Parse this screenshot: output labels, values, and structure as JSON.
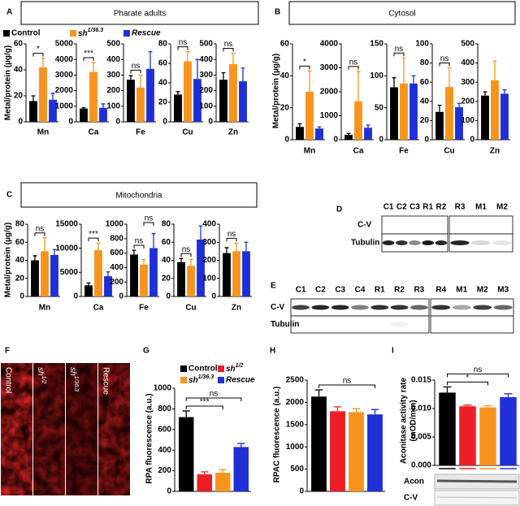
{
  "panels": [
    {
      "letter": "A",
      "title": "Pharate adults"
    },
    {
      "letter": "B",
      "title": "Cytosol"
    },
    {
      "letter": "C",
      "title": "Mitochondria"
    },
    {
      "letter": "D"
    },
    {
      "letter": "E"
    },
    {
      "letter": "F"
    },
    {
      "letter": "G"
    },
    {
      "letter": "H"
    },
    {
      "letter": "I"
    }
  ],
  "chart_data": [
    {
      "type": "bar",
      "xlabel": "Mn",
      "ylabel": "Metal/protein (µg/g)",
      "legend": [
        {
          "name": "Control",
          "color": "#000000"
        },
        {
          "name": "sh1/36.3",
          "color": "#f7941d"
        },
        {
          "name": "Rescue",
          "color": "#1f2fd8"
        }
      ],
      "values": [
        16,
        42,
        17
      ],
      "errors": [
        4,
        7,
        5
      ],
      "colors": [
        "#000000",
        "#f7941d",
        "#1f2fd8"
      ],
      "ylim": [
        0,
        60
      ],
      "yticks": [
        0,
        20,
        40,
        60
      ],
      "significance": [
        {
          "label": "*",
          "spans": [
            0,
            1
          ]
        }
      ]
    },
    {
      "type": "bar",
      "xlabel": "Ca",
      "values": [
        850,
        3200,
        900
      ],
      "errors": [
        60,
        600,
        250
      ],
      "colors": [
        "#000000",
        "#f7941d",
        "#1f2fd8"
      ],
      "ylim": [
        0,
        5000
      ],
      "yticks": [
        0,
        1000,
        2000,
        3000,
        4000,
        5000
      ],
      "significance": [
        {
          "label": "***",
          "spans": [
            0,
            1
          ]
        }
      ]
    },
    {
      "type": "bar",
      "xlabel": "Fe",
      "values": [
        270,
        220,
        340
      ],
      "errors": [
        25,
        80,
        110
      ],
      "colors": [
        "#000000",
        "#f7941d",
        "#1f2fd8"
      ],
      "ylim": [
        0,
        500
      ],
      "yticks": [
        0,
        100,
        200,
        300,
        400,
        500
      ],
      "significance": [
        {
          "label": "ns",
          "spans": [
            0,
            1
          ]
        }
      ]
    },
    {
      "type": "bar",
      "xlabel": "Cu",
      "values": [
        28,
        62,
        44
      ],
      "errors": [
        3,
        10,
        20
      ],
      "colors": [
        "#000000",
        "#f7941d",
        "#1f2fd8"
      ],
      "ylim": [
        0,
        80
      ],
      "yticks": [
        0,
        20,
        40,
        60,
        80
      ],
      "significance": [
        {
          "label": "ns",
          "spans": [
            0,
            1
          ]
        }
      ]
    },
    {
      "type": "bar",
      "xlabel": "Zn",
      "values": [
        270,
        370,
        260
      ],
      "errors": [
        45,
        70,
        85
      ],
      "colors": [
        "#000000",
        "#f7941d",
        "#1f2fd8"
      ],
      "ylim": [
        0,
        500
      ],
      "yticks": [
        0,
        100,
        200,
        300,
        400,
        500
      ],
      "significance": [
        {
          "label": "ns",
          "spans": [
            0,
            1
          ]
        }
      ]
    },
    {
      "type": "bar",
      "xlabel": "Mn",
      "ylabel": "Metal/protein (µg/g)",
      "values": [
        8,
        30,
        7
      ],
      "errors": [
        2,
        13,
        1
      ],
      "colors": [
        "#000000",
        "#f7941d",
        "#1f2fd8"
      ],
      "ylim": [
        0,
        60
      ],
      "yticks": [
        0,
        20,
        40,
        60
      ],
      "significance": [
        {
          "label": "*",
          "spans": [
            0,
            1
          ]
        }
      ]
    },
    {
      "type": "bar",
      "xlabel": "Ca",
      "values": [
        200,
        1600,
        500
      ],
      "errors": [
        60,
        1250,
        110
      ],
      "colors": [
        "#000000",
        "#f7941d",
        "#1f2fd8"
      ],
      "ylim": [
        0,
        4000
      ],
      "yticks": [
        0,
        1000,
        2000,
        3000,
        4000
      ],
      "significance": [
        {
          "label": "ns",
          "spans": [
            0,
            1
          ]
        }
      ]
    },
    {
      "type": "bar",
      "xlabel": "Fe",
      "values": [
        82,
        88,
        88
      ],
      "errors": [
        15,
        40,
        12
      ],
      "colors": [
        "#000000",
        "#f7941d",
        "#1f2fd8"
      ],
      "ylim": [
        0,
        150
      ],
      "yticks": [
        0,
        50,
        100,
        150
      ],
      "significance": [
        {
          "label": "ns",
          "spans": [
            0,
            1
          ]
        }
      ]
    },
    {
      "type": "bar",
      "xlabel": "Cu",
      "values": [
        29,
        55,
        34
      ],
      "errors": [
        7,
        20,
        4
      ],
      "colors": [
        "#000000",
        "#f7941d",
        "#1f2fd8"
      ],
      "ylim": [
        0,
        100
      ],
      "yticks": [
        0,
        20,
        40,
        60,
        80,
        100
      ],
      "significance": [
        {
          "label": "ns",
          "spans": [
            0,
            1
          ]
        }
      ]
    },
    {
      "type": "bar",
      "xlabel": "Zn",
      "values": [
        230,
        310,
        240
      ],
      "errors": [
        20,
        100,
        20
      ],
      "colors": [
        "#000000",
        "#f7941d",
        "#1f2fd8"
      ],
      "ylim": [
        0,
        500
      ],
      "yticks": [
        0,
        100,
        200,
        300,
        400,
        500
      ],
      "significance": []
    },
    {
      "type": "bar",
      "xlabel": "Mn",
      "ylabel": "Metal/protein (µg/g)",
      "values": [
        40,
        50,
        46
      ],
      "errors": [
        5,
        15,
        6
      ],
      "colors": [
        "#000000",
        "#f7941d",
        "#1f2fd8"
      ],
      "ylim": [
        0,
        80
      ],
      "yticks": [
        0,
        20,
        40,
        60,
        80
      ],
      "significance": [
        {
          "label": "ns",
          "spans": [
            0,
            1
          ]
        }
      ]
    },
    {
      "type": "bar",
      "xlabel": "Ca",
      "values": [
        2300,
        9600,
        4200
      ],
      "errors": [
        500,
        1500,
        900
      ],
      "colors": [
        "#000000",
        "#f7941d",
        "#1f2fd8"
      ],
      "ylim": [
        0,
        15000
      ],
      "yticks": [
        0,
        5000,
        10000,
        15000
      ],
      "significance": [
        {
          "label": "***",
          "spans": [
            0,
            1
          ]
        }
      ]
    },
    {
      "type": "bar",
      "xlabel": "Fe",
      "values": [
        580,
        440,
        670
      ],
      "errors": [
        60,
        70,
        200
      ],
      "colors": [
        "#000000",
        "#f7941d",
        "#1f2fd8"
      ],
      "ylim": [
        0,
        1000
      ],
      "yticks": [
        0,
        200,
        400,
        600,
        800,
        1000
      ],
      "significance": [
        {
          "label": "ns",
          "spans": [
            0,
            1
          ]
        },
        {
          "label": "ns",
          "spans": [
            1,
            2
          ]
        }
      ]
    },
    {
      "type": "bar",
      "xlabel": "Cu",
      "values": [
        38,
        34,
        63
      ],
      "errors": [
        4,
        7,
        15
      ],
      "colors": [
        "#000000",
        "#f7941d",
        "#1f2fd8"
      ],
      "ylim": [
        0,
        80
      ],
      "yticks": [
        0,
        20,
        40,
        60,
        80
      ],
      "significance": [
        {
          "label": "ns",
          "spans": [
            0,
            1
          ]
        }
      ]
    },
    {
      "type": "bar",
      "xlabel": "Zn",
      "values": [
        240,
        250,
        250
      ],
      "errors": [
        30,
        45,
        50
      ],
      "colors": [
        "#000000",
        "#f7941d",
        "#1f2fd8"
      ],
      "ylim": [
        0,
        400
      ],
      "yticks": [
        0,
        100,
        200,
        300,
        400
      ],
      "significance": [
        {
          "label": "ns",
          "spans": [
            0,
            1
          ]
        }
      ]
    },
    {
      "type": "bar",
      "ylabel": "RPA fluorescence (a.u.)",
      "legend": [
        {
          "name": "Control",
          "color": "#000000"
        },
        {
          "name": "sh1/2",
          "color": "#ee1c25"
        },
        {
          "name": "sh1/36.3",
          "color": "#f7941d"
        },
        {
          "name": "Rescue",
          "color": "#1f2fd8"
        }
      ],
      "values": [
        720,
        165,
        180,
        430
      ],
      "errors": [
        60,
        25,
        30,
        35
      ],
      "colors": [
        "#000000",
        "#ee1c25",
        "#f7941d",
        "#1f2fd8"
      ],
      "ylim": [
        0,
        1000
      ],
      "yticks": [
        0,
        200,
        400,
        600,
        800,
        1000
      ],
      "significance": [
        {
          "label": "***",
          "spans": [
            0,
            2
          ]
        },
        {
          "label": "ns",
          "spans": [
            0,
            3
          ]
        }
      ]
    },
    {
      "type": "bar",
      "ylabel": "RPAC fluorescence (a.u.)",
      "values": [
        2130,
        1800,
        1780,
        1730
      ],
      "errors": [
        150,
        100,
        80,
        110
      ],
      "colors": [
        "#000000",
        "#ee1c25",
        "#f7941d",
        "#1f2fd8"
      ],
      "ylim": [
        0,
        2500
      ],
      "yticks": [
        0,
        500,
        1000,
        1500,
        2000,
        2500
      ],
      "significance": [
        {
          "label": "ns",
          "spans": [
            0,
            3
          ]
        }
      ]
    },
    {
      "type": "bar",
      "ylabel": [
        "Aconitase activity rate",
        "(mOD/min)"
      ],
      "values": [
        0.0128,
        0.0104,
        0.0102,
        0.012
      ],
      "errors": [
        0.001,
        0.0002,
        0.0003,
        0.0006
      ],
      "colors": [
        "#000000",
        "#ee1c25",
        "#f7941d",
        "#1f2fd8"
      ],
      "ylim": [
        0,
        0.015
      ],
      "yticks": [
        {
          "value": 0,
          "label": "0.000"
        },
        0.005,
        {
          "value": 0.01,
          "label": "0.010"
        },
        0.015
      ],
      "significance": [
        {
          "label": "*",
          "spans": [
            0,
            2
          ]
        },
        {
          "label": "ns",
          "spans": [
            0,
            3
          ]
        }
      ]
    }
  ],
  "blots": [
    {
      "lanes": [
        "C1",
        "C2",
        "C3",
        "R1",
        "R2",
        "R3",
        "M1",
        "M2"
      ],
      "rows": [
        "C-V",
        "Tubulin"
      ]
    },
    {
      "lanes": [
        "C1",
        "C2",
        "C3",
        "C4",
        "R1",
        "R2",
        "R3",
        "R4",
        "M1",
        "M2",
        "M3"
      ],
      "rows": [
        "C-V",
        "Tubulin"
      ]
    },
    {
      "rows": [
        "Acon",
        "C-V"
      ]
    }
  ],
  "images": [
    "Control",
    "sh1/2",
    "sh1/36.3",
    "Rescue"
  ]
}
